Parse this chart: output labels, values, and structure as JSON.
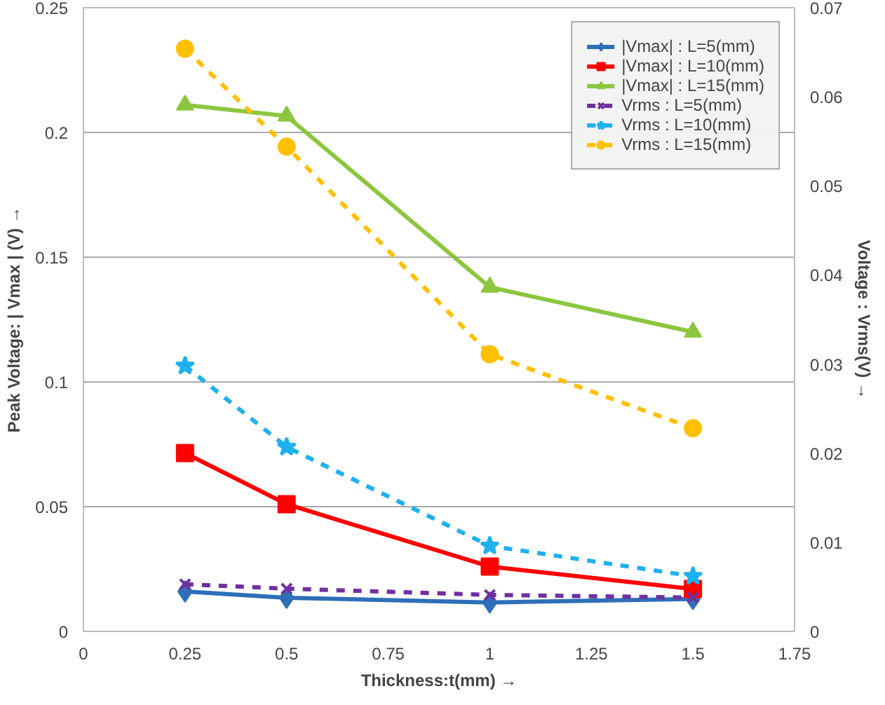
{
  "chart_data": {
    "type": "line",
    "xlabel": "Thickness:t(mm) →",
    "ylabel": "Peak Voltage: | Vmax | (V) →",
    "y2label": "Voltage : Vrms(V) →",
    "x": [
      0.25,
      0.5,
      1,
      1.5
    ],
    "xlim": [
      0,
      1.75
    ],
    "xticks": [
      0,
      0.25,
      0.5,
      0.75,
      1,
      1.25,
      1.5,
      1.75
    ],
    "ylim": [
      0,
      0.25
    ],
    "yticks": [
      0,
      0.05,
      0.1,
      0.15,
      0.2,
      0.25
    ],
    "y2lim": [
      0,
      0.07
    ],
    "y2ticks": [
      0,
      0.01,
      0.02,
      0.03,
      0.04,
      0.05,
      0.06,
      0.07
    ],
    "grid": "y",
    "legend": "top right",
    "series": [
      {
        "name": "|Vmax| : L=5(mm)",
        "color": "#2e6fb7",
        "marker": "diamond",
        "line_style": "solid",
        "values": [
          0.016,
          0.0135,
          0.0116,
          0.013
        ]
      },
      {
        "name": "|Vmax| : L=10(mm)",
        "color": "#ff0000",
        "marker": "square",
        "line_style": "solid",
        "values": [
          0.0715,
          0.051,
          0.026,
          0.017
        ]
      },
      {
        "name": "|Vmax| : L=15(mm)",
        "color": "#8cc63f",
        "marker": "triangle",
        "line_style": "solid",
        "values": [
          0.211,
          0.2066,
          0.138,
          0.12
        ]
      },
      {
        "name": "Vrms : L=5(mm)",
        "color": "#7030a0",
        "marker": "cross",
        "line_style": "dashed",
        "axis": "y2",
        "values": [
          0.0053,
          0.0048,
          0.0041,
          0.0038
        ]
      },
      {
        "name": "Vrms : L=10(mm)",
        "color": "#1fb0ef",
        "marker": "star",
        "line_style": "dashed",
        "axis": "y2",
        "values": [
          0.0298,
          0.0207,
          0.0096,
          0.0062
        ]
      },
      {
        "name": "Vrms : L=15(mm)",
        "color": "#ffc000",
        "marker": "circle",
        "line_style": "dashed",
        "axis": "y2",
        "values": [
          0.0654,
          0.0544,
          0.0311,
          0.0228
        ]
      }
    ]
  }
}
